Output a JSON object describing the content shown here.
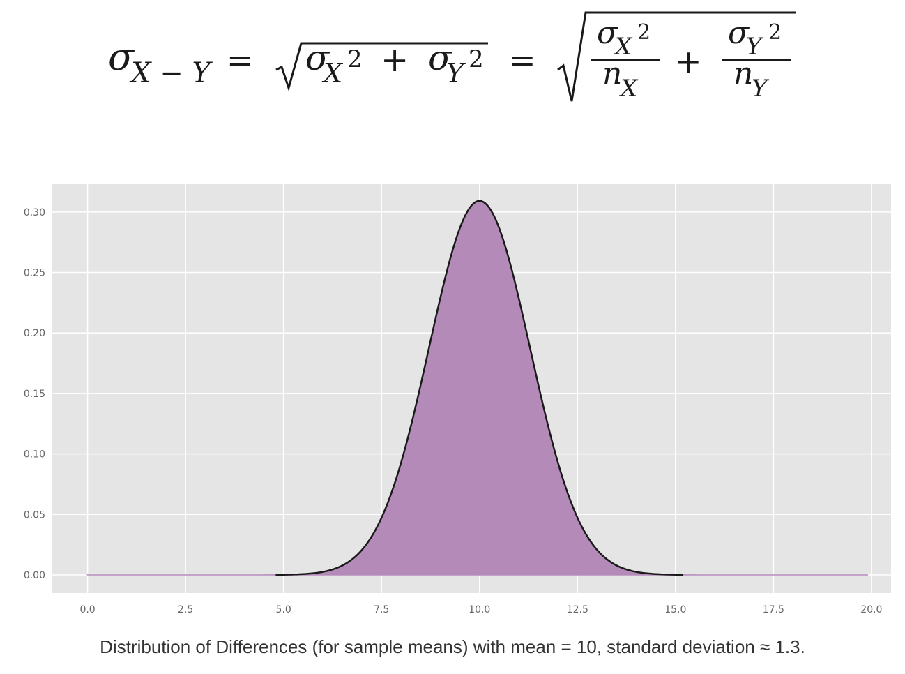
{
  "formula": {
    "sigma": "σ",
    "x_minus_y": "X − Y",
    "equals": "=",
    "plus": "+",
    "X": "X",
    "Y": "Y",
    "n": "n",
    "two": "2"
  },
  "chart_data": {
    "type": "area",
    "title": "",
    "xlabel": "",
    "ylabel": "",
    "mean": 10,
    "std": 1.29,
    "x_range_support": [
      0,
      19.9
    ],
    "outline_range": [
      4.8,
      15.2
    ],
    "xlim": [
      -0.9,
      20.5
    ],
    "ylim": [
      -0.015,
      0.323
    ],
    "x_ticks": [
      "0.0",
      "2.5",
      "5.0",
      "7.5",
      "10.0",
      "12.5",
      "15.0",
      "17.5",
      "20.0"
    ],
    "x_tick_values": [
      0,
      2.5,
      5,
      7.5,
      10,
      12.5,
      15,
      17.5,
      20
    ],
    "y_ticks": [
      "0.00",
      "0.05",
      "0.10",
      "0.15",
      "0.20",
      "0.25",
      "0.30"
    ],
    "y_tick_values": [
      0,
      0.05,
      0.1,
      0.15,
      0.2,
      0.25,
      0.3
    ],
    "grid": true,
    "fill_color": "#b48ab9",
    "line_color": "#1a1a1a",
    "background_color": "#e5e5e5"
  },
  "caption": "Distribution of Differences (for sample means) with mean = 10, standard deviation ≈ 1.3."
}
